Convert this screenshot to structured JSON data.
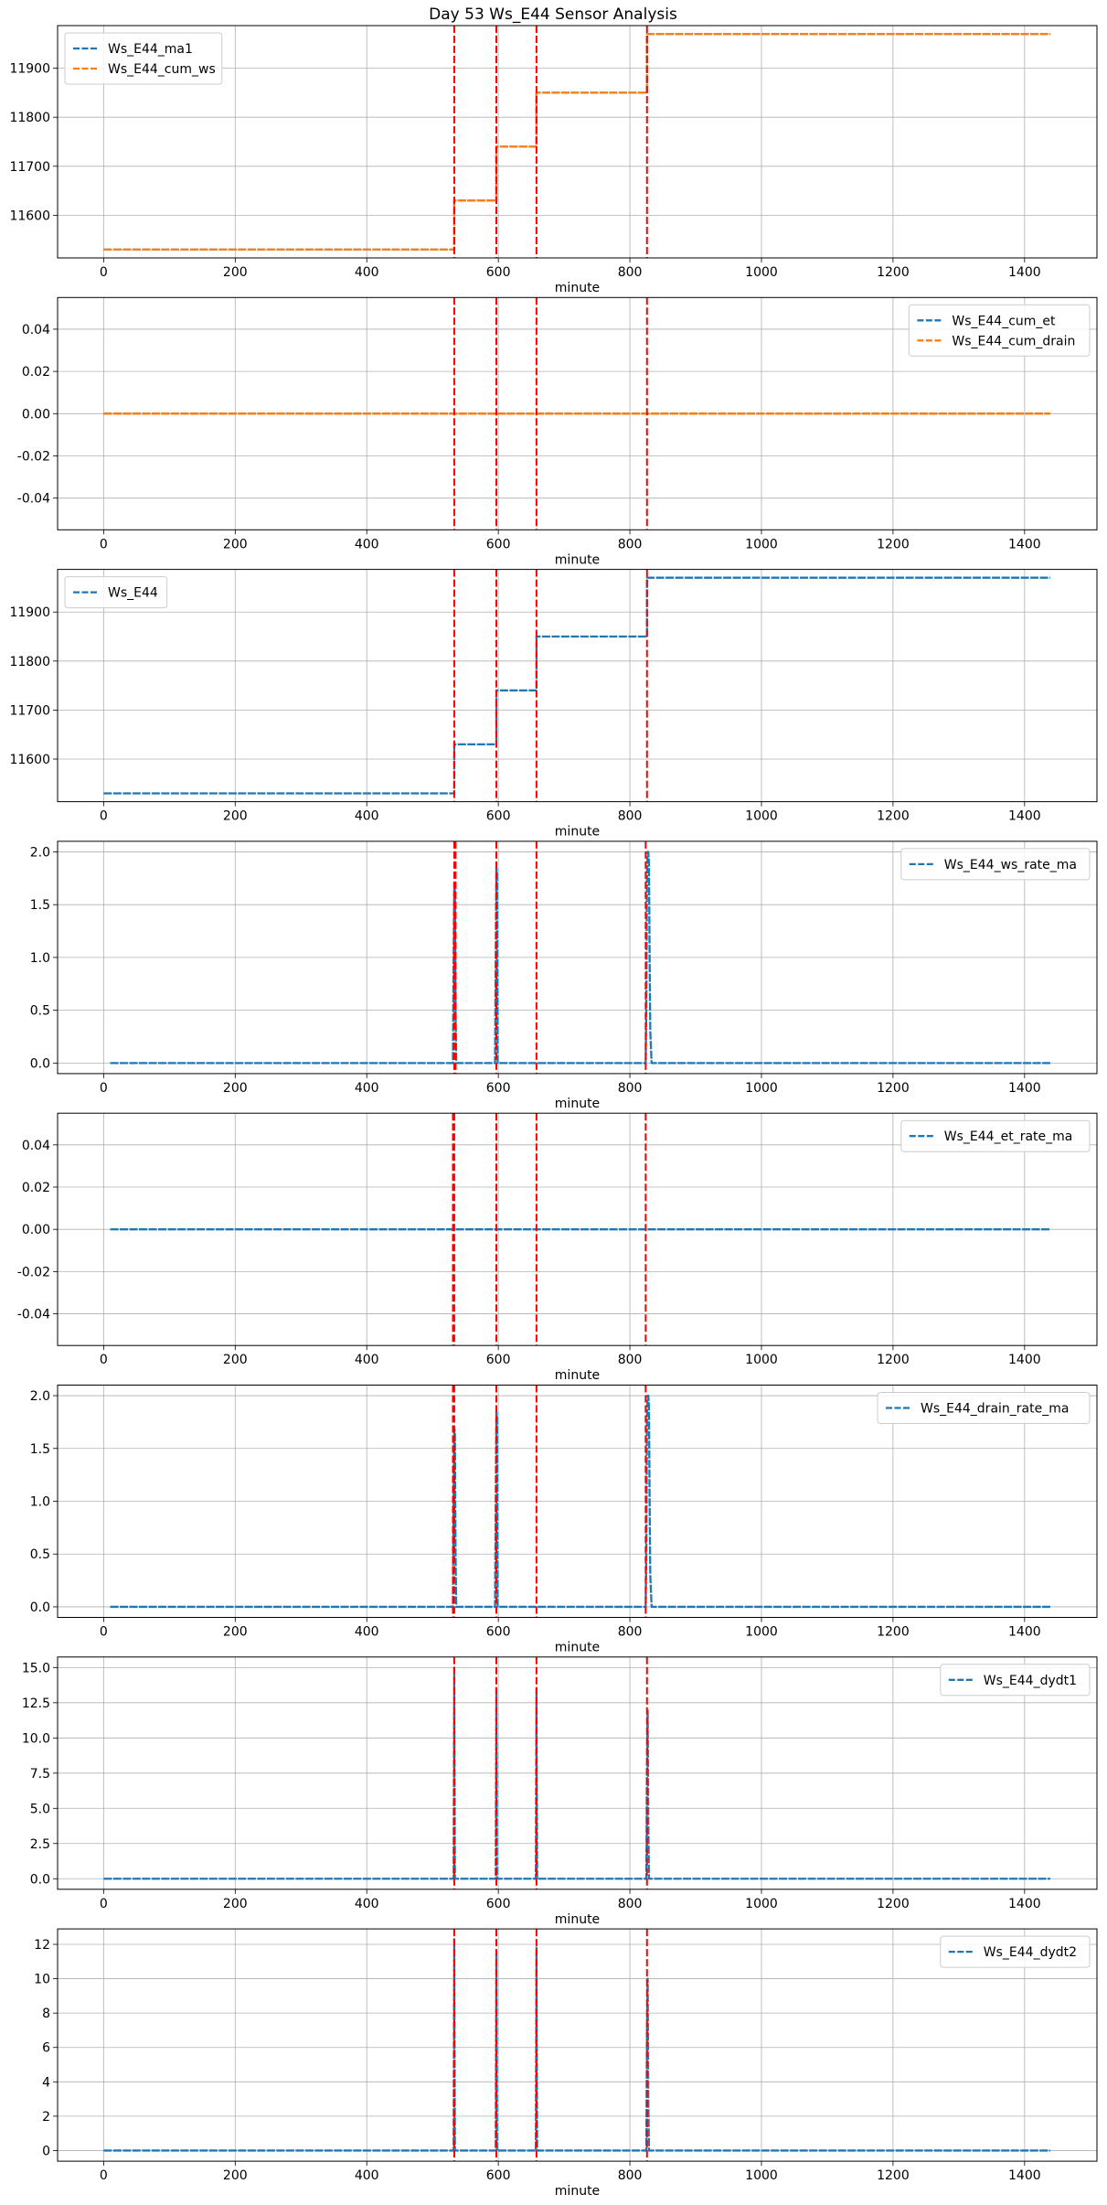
{
  "title": "Day 53 Ws_E44 Sensor Analysis",
  "colors": {
    "blue": "#1f77b4",
    "orange": "#ff7f0e",
    "vline": "#ff0000",
    "grid": "#b0b0b0"
  },
  "chart_data": [
    {
      "type": "line",
      "xlabel": "minute",
      "xlim": [
        -70,
        1510
      ],
      "ylim": [
        11513,
        11987
      ],
      "xticks": [
        0,
        200,
        400,
        600,
        800,
        1000,
        1200,
        1400
      ],
      "yticks": [
        11600,
        11700,
        11800,
        11900
      ],
      "grid": true,
      "legend": "upper-left",
      "vlines": [
        533,
        597,
        658,
        826
      ],
      "series": [
        {
          "name": "Ws_E44_ma1",
          "color": "#1f77b4",
          "x": [
            0,
            533,
            533,
            597,
            597,
            658,
            658,
            826,
            826,
            1439
          ],
          "y": [
            11530,
            11530,
            11630,
            11630,
            11740,
            11740,
            11850,
            11850,
            11970,
            11970
          ]
        },
        {
          "name": "Ws_E44_cum_ws",
          "color": "#ff7f0e",
          "x": [
            0,
            533,
            533,
            597,
            597,
            658,
            658,
            826,
            826,
            1439
          ],
          "y": [
            11530,
            11530,
            11630,
            11630,
            11740,
            11740,
            11850,
            11850,
            11970,
            11970
          ]
        }
      ]
    },
    {
      "type": "line",
      "xlabel": "minute",
      "xlim": [
        -70,
        1510
      ],
      "ylim": [
        -0.055,
        0.055
      ],
      "xticks": [
        0,
        200,
        400,
        600,
        800,
        1000,
        1200,
        1400
      ],
      "yticks": [
        -0.04,
        -0.02,
        0.0,
        0.02,
        0.04
      ],
      "ytick_labels": [
        "-0.04",
        "-0.02",
        "0.00",
        "0.02",
        "0.04"
      ],
      "grid": true,
      "legend": "upper-right",
      "vlines": [
        533,
        597,
        658,
        826
      ],
      "series": [
        {
          "name": "Ws_E44_cum_et",
          "color": "#1f77b4",
          "x": [
            0,
            1439
          ],
          "y": [
            0,
            0
          ]
        },
        {
          "name": "Ws_E44_cum_drain",
          "color": "#ff7f0e",
          "x": [
            0,
            1439
          ],
          "y": [
            0,
            0
          ]
        }
      ]
    },
    {
      "type": "line",
      "xlabel": "minute",
      "xlim": [
        -70,
        1510
      ],
      "ylim": [
        11513,
        11987
      ],
      "xticks": [
        0,
        200,
        400,
        600,
        800,
        1000,
        1200,
        1400
      ],
      "yticks": [
        11600,
        11700,
        11800,
        11900
      ],
      "grid": true,
      "legend": "upper-left",
      "vlines": [
        533,
        597,
        658,
        826
      ],
      "series": [
        {
          "name": "Ws_E44",
          "color": "#1f77b4",
          "x": [
            0,
            533,
            533,
            597,
            597,
            658,
            658,
            826,
            826,
            1439
          ],
          "y": [
            11530,
            11530,
            11630,
            11630,
            11740,
            11740,
            11850,
            11850,
            11970,
            11970
          ]
        }
      ]
    },
    {
      "type": "line",
      "xlabel": "minute",
      "xlim": [
        -70,
        1510
      ],
      "ylim": [
        -0.1,
        2.1
      ],
      "xticks": [
        0,
        200,
        400,
        600,
        800,
        1000,
        1200,
        1400
      ],
      "yticks": [
        0.0,
        0.5,
        1.0,
        1.5,
        2.0
      ],
      "ytick_labels": [
        "0.0",
        "0.5",
        "1.0",
        "1.5",
        "2.0"
      ],
      "grid": true,
      "legend": "upper-right",
      "vlines": [
        533,
        535,
        597,
        658,
        824
      ],
      "series": [
        {
          "name": "Ws_E44_ws_rate_ma",
          "color": "#1f77b4",
          "x": [
            10,
            531,
            532,
            533,
            534,
            535,
            536,
            595,
            596,
            597,
            598,
            599,
            824,
            825,
            826,
            827,
            828,
            829,
            830,
            831,
            833,
            1439
          ],
          "y": [
            0,
            0,
            1.0,
            1.7,
            1.65,
            0.5,
            0,
            0,
            1.0,
            1.85,
            1.8,
            0,
            0,
            0.5,
            1.8,
            2.0,
            2.0,
            1.9,
            1.0,
            0.3,
            0,
            0
          ]
        }
      ]
    },
    {
      "type": "line",
      "xlabel": "minute",
      "xlim": [
        -70,
        1510
      ],
      "ylim": [
        -0.055,
        0.055
      ],
      "xticks": [
        0,
        200,
        400,
        600,
        800,
        1000,
        1200,
        1400
      ],
      "yticks": [
        -0.04,
        -0.02,
        0.0,
        0.02,
        0.04
      ],
      "ytick_labels": [
        "-0.04",
        "-0.02",
        "0.00",
        "0.02",
        "0.04"
      ],
      "grid": true,
      "legend": "upper-right",
      "vlines": [
        531,
        533,
        597,
        658,
        824
      ],
      "series": [
        {
          "name": "Ws_E44_et_rate_ma",
          "color": "#1f77b4",
          "x": [
            10,
            1439
          ],
          "y": [
            0,
            0
          ]
        }
      ]
    },
    {
      "type": "line",
      "xlabel": "minute",
      "xlim": [
        -70,
        1510
      ],
      "ylim": [
        -0.1,
        2.1
      ],
      "xticks": [
        0,
        200,
        400,
        600,
        800,
        1000,
        1200,
        1400
      ],
      "yticks": [
        0.0,
        0.5,
        1.0,
        1.5,
        2.0
      ],
      "ytick_labels": [
        "0.0",
        "0.5",
        "1.0",
        "1.5",
        "2.0"
      ],
      "grid": true,
      "legend": "upper-right",
      "vlines": [
        531,
        533,
        597,
        658,
        824
      ],
      "series": [
        {
          "name": "Ws_E44_drain_rate_ma",
          "color": "#1f77b4",
          "x": [
            10,
            531,
            532,
            533,
            534,
            535,
            536,
            595,
            596,
            597,
            598,
            599,
            824,
            825,
            826,
            827,
            828,
            829,
            830,
            831,
            833,
            1439
          ],
          "y": [
            0,
            0,
            1.0,
            1.7,
            1.65,
            0.5,
            0,
            0,
            1.0,
            1.85,
            1.8,
            0,
            0,
            0.5,
            1.8,
            2.0,
            2.0,
            1.9,
            1.0,
            0.3,
            0,
            0
          ]
        }
      ]
    },
    {
      "type": "line",
      "xlabel": "minute",
      "xlim": [
        -70,
        1510
      ],
      "ylim": [
        -0.75,
        15.75
      ],
      "xticks": [
        0,
        200,
        400,
        600,
        800,
        1000,
        1200,
        1400
      ],
      "yticks": [
        0.0,
        2.5,
        5.0,
        7.5,
        10.0,
        12.5,
        15.0
      ],
      "ytick_labels": [
        "0.0",
        "2.5",
        "5.0",
        "7.5",
        "10.0",
        "12.5",
        "15.0"
      ],
      "grid": true,
      "legend": "upper-right",
      "vlines": [
        533,
        597,
        658,
        826
      ],
      "series": [
        {
          "name": "Ws_E44_dydt1",
          "color": "#1f77b4",
          "x": [
            0,
            532,
            533,
            534,
            596,
            597,
            598,
            657,
            658,
            659,
            825,
            826,
            827,
            828,
            829,
            1439
          ],
          "y": [
            0,
            0,
            15.0,
            0,
            0,
            13.5,
            0,
            0,
            13.5,
            0,
            0,
            8.0,
            12.0,
            4.0,
            0,
            0
          ]
        }
      ]
    },
    {
      "type": "line",
      "xlabel": "minute",
      "xlim": [
        -70,
        1510
      ],
      "ylim": [
        -0.62,
        12.9
      ],
      "xticks": [
        0,
        200,
        400,
        600,
        800,
        1000,
        1200,
        1400
      ],
      "yticks": [
        0,
        2,
        4,
        6,
        8,
        10,
        12
      ],
      "ytick_labels": [
        "0",
        "2",
        "4",
        "6",
        "8",
        "10",
        "12"
      ],
      "grid": true,
      "legend": "upper-right",
      "vlines": [
        533,
        597,
        658,
        826
      ],
      "series": [
        {
          "name": "Ws_E44_dydt2",
          "color": "#1f77b4",
          "x": [
            0,
            532,
            533,
            534,
            596,
            597,
            598,
            657,
            658,
            659,
            825,
            826,
            827,
            828,
            829,
            1439
          ],
          "y": [
            0,
            0,
            12.3,
            0,
            0,
            11.5,
            0,
            0,
            11.8,
            0,
            0,
            7.0,
            10.0,
            3.0,
            0,
            0
          ]
        }
      ]
    }
  ]
}
